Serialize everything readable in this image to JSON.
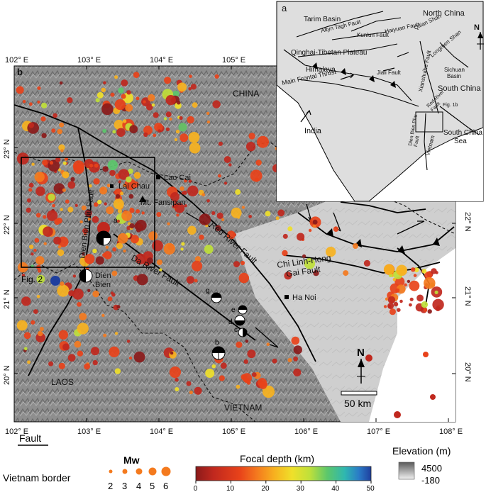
{
  "main_map": {
    "panel_label": "b",
    "countries": {
      "china": "CHINA",
      "laos": "LAOS",
      "vietnam": "VIETNAM"
    },
    "places": {
      "lao_cai": "Lao Cai",
      "lai_chau": "Lai Chau",
      "fansipan": "Mt. Fansipan",
      "dien_bien": "Dien\nBien",
      "ha_noi": "Ha Noi"
    },
    "faults": {
      "red_river": "Red River Fault",
      "da_river": "Da River Fault",
      "dien_bien_phu": "Dien Bien Phu Fault",
      "chi_linh": "Chi Linh-Hong\nGai Fault"
    },
    "box_label": "Fig. 2",
    "focal_labels": [
      "a",
      "b",
      "c",
      "d",
      "e",
      "g"
    ],
    "north_arrow": "N",
    "scale_label": "50 km",
    "lon_ticks": [
      "102° E",
      "103° E",
      "104° E",
      "105° E",
      "106° E",
      "107° E",
      "108° E"
    ],
    "lat_ticks": [
      "23° N",
      "22° N",
      "21° N",
      "20° N"
    ]
  },
  "inset": {
    "panel_label": "a",
    "regions": {
      "tarim": "Tarim Basin",
      "north_china": "North China",
      "qinghai": "Qinghai-Tibetan Plateau",
      "himalaya": "Himalaya",
      "south_china": "South China",
      "sichuan": "Sichuan\nBasin",
      "india": "India",
      "scs": "South China\nSea"
    },
    "faults": {
      "altyn": "Altyn Tagh Fault",
      "kunlun": "Kunlun Fault",
      "haiyuan": "Haiyuan Fault",
      "qilian": "Qilian Shan",
      "longmen": "Longmen Shan",
      "xianshuihe": "Xianshuihe Fault",
      "jiali": "Jiali Fault",
      "mft": "Main Frontal Thrust",
      "red_river": "Red River\nFault",
      "dbp": "Dien Bien Phu\nFault",
      "fig1b": "Fig. 1b",
      "vietnam": "Vietnam"
    },
    "north": "N"
  },
  "legend": {
    "fault": "Fault",
    "border": "Vietnam border",
    "mw_title": "Mw",
    "mw_values": [
      "2",
      "3",
      "4",
      "5",
      "6"
    ],
    "depth_title": "Focal depth (km)",
    "depth_ticks": [
      "0",
      "10",
      "20",
      "30",
      "40",
      "50"
    ],
    "elev_title": "Elevation (m)",
    "elev_max": "4500",
    "elev_min": "-180"
  },
  "colors": {
    "depth_scale": [
      "#8b1a1a",
      "#c0281e",
      "#e8421a",
      "#f47a1e",
      "#f7b21f",
      "#efe02a",
      "#bfe03a",
      "#5cc76b",
      "#2fb7b0",
      "#2a7bc7",
      "#1f3f9e"
    ]
  }
}
